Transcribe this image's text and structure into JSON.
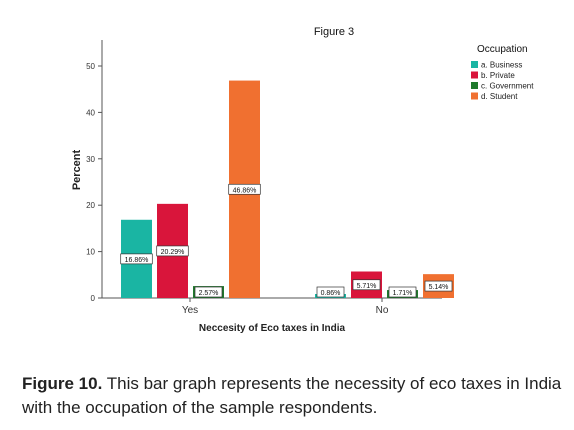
{
  "chart_data": {
    "type": "bar",
    "title": "Figure 3",
    "xlabel": "Neccesity of Eco taxes in India",
    "ylabel": "Percent",
    "ylim": [
      0,
      50
    ],
    "yticks": [
      0,
      10,
      20,
      30,
      40,
      50
    ],
    "grid": false,
    "legend_title": "Occupation",
    "legend_position": "top-right",
    "categories": [
      "Yes",
      "No"
    ],
    "series": [
      {
        "name": "a. Business",
        "color": "#1ab5a3",
        "values": [
          16.86,
          0.86
        ],
        "labels": [
          "16.86%",
          "0.86%"
        ]
      },
      {
        "name": "b. Private",
        "color": "#d9153b",
        "values": [
          20.29,
          5.71
        ],
        "labels": [
          "20.29%",
          "5.71%"
        ]
      },
      {
        "name": "c. Government",
        "color": "#1f7a2c",
        "values": [
          2.57,
          1.71
        ],
        "labels": [
          "2.57%",
          "1.71%"
        ]
      },
      {
        "name": "d. Student",
        "color": "#f07030",
        "values": [
          46.86,
          5.14
        ],
        "labels": [
          "46.86%",
          "5.14%"
        ]
      }
    ]
  },
  "caption": {
    "label": "Figure 10.",
    "text": " This bar graph represents the necessity of eco taxes in India with the occupation of the sample respondents."
  }
}
